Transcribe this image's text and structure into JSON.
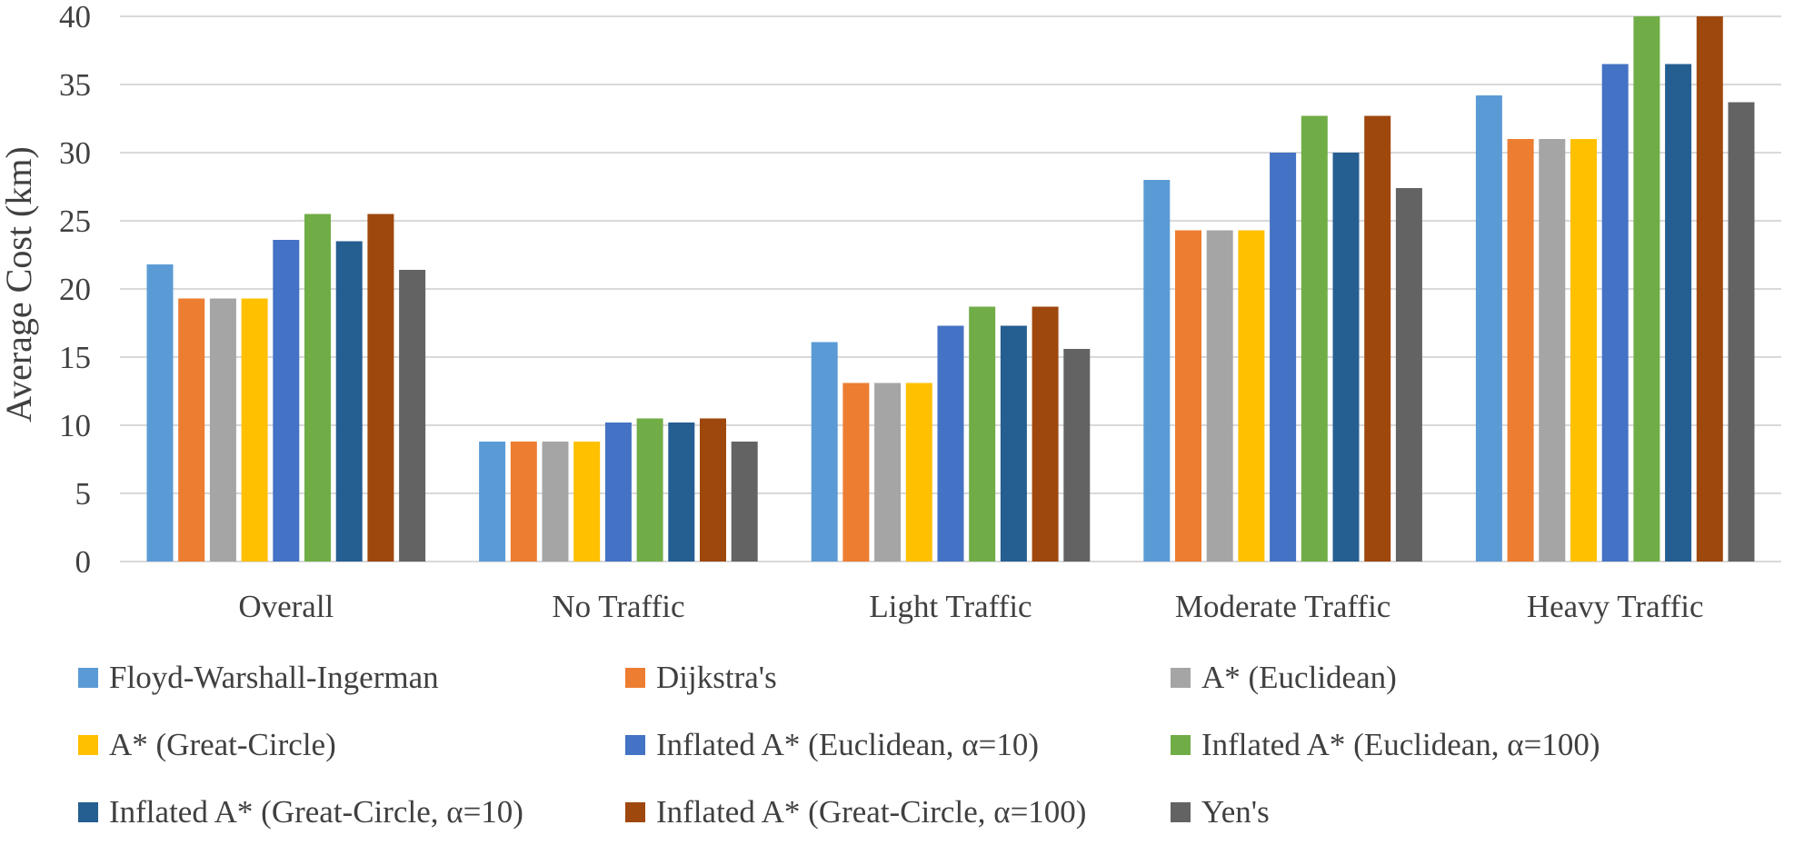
{
  "chart_data": {
    "type": "bar",
    "title": "",
    "xlabel": "",
    "ylabel": "Average Cost (km)",
    "ylim": [
      0,
      40
    ],
    "yticks": [
      "0",
      "5",
      "10",
      "15",
      "20",
      "25",
      "30",
      "35",
      "40"
    ],
    "grid": true,
    "legend_position": "bottom",
    "categories": [
      "Overall",
      "No Traffic",
      "Light Traffic",
      "Moderate Traffic",
      "Heavy Traffic"
    ],
    "series": [
      {
        "name": "Floyd-Warshall-Ingerman",
        "color": "#5B9BD5",
        "values": [
          21.8,
          8.8,
          16.1,
          28.0,
          34.2
        ]
      },
      {
        "name": "Dijkstra's",
        "color": "#ED7D31",
        "values": [
          19.3,
          8.8,
          13.1,
          24.3,
          31.0
        ]
      },
      {
        "name": "A* (Euclidean)",
        "color": "#A5A5A5",
        "values": [
          19.3,
          8.8,
          13.1,
          24.3,
          31.0
        ]
      },
      {
        "name": "A* (Great-Circle)",
        "color": "#FFC000",
        "values": [
          19.3,
          8.8,
          13.1,
          24.3,
          31.0
        ]
      },
      {
        "name": "Inflated A* (Euclidean, α=10)",
        "color": "#4472C4",
        "values": [
          23.6,
          10.2,
          17.3,
          30.0,
          36.5
        ]
      },
      {
        "name": "Inflated A* (Euclidean, α=100)",
        "color": "#70AD47",
        "values": [
          25.5,
          10.5,
          18.7,
          32.7,
          40.0
        ]
      },
      {
        "name": "Inflated A* (Great-Circle, α=10)",
        "color": "#255E91",
        "values": [
          23.5,
          10.2,
          17.3,
          30.0,
          36.5
        ]
      },
      {
        "name": "Inflated A* (Great-Circle, α=100)",
        "color": "#9E480E",
        "values": [
          25.5,
          10.5,
          18.7,
          32.7,
          40.0
        ]
      },
      {
        "name": "Yen's",
        "color": "#636363",
        "values": [
          21.4,
          8.8,
          15.6,
          27.4,
          33.7
        ]
      }
    ]
  }
}
